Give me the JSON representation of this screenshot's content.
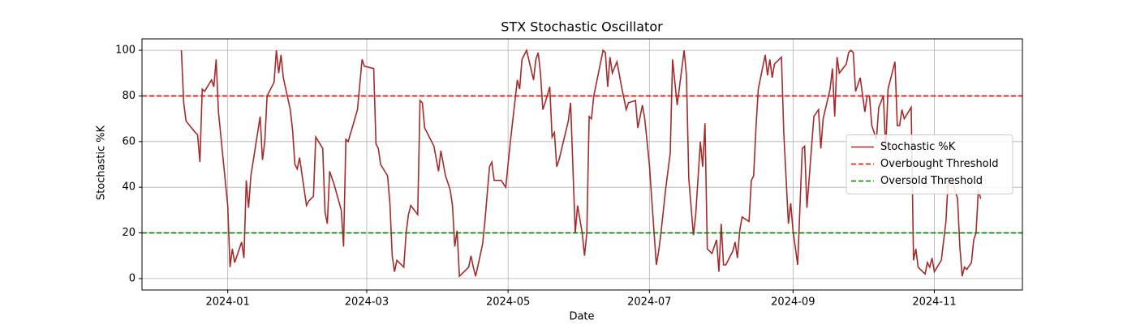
{
  "chart_data": {
    "type": "line",
    "title": "STX Stochastic Oscillator",
    "xlabel": "Date",
    "ylabel": "Stochastic %K",
    "x": [
      "2023-12-12",
      "2023-12-13",
      "2023-12-14",
      "2023-12-18",
      "2023-12-19",
      "2023-12-20",
      "2023-12-21",
      "2023-12-22",
      "2023-12-25",
      "2023-12-26",
      "2023-12-27",
      "2023-12-28",
      "2024-01-01",
      "2024-01-02",
      "2024-01-03",
      "2024-01-04",
      "2024-01-07",
      "2024-01-08",
      "2024-01-09",
      "2024-01-10",
      "2024-01-11",
      "2024-01-15",
      "2024-01-16",
      "2024-01-17",
      "2024-01-18",
      "2024-01-21",
      "2024-01-22",
      "2024-01-23",
      "2024-01-24",
      "2024-01-25",
      "2024-01-28",
      "2024-01-29",
      "2024-01-30",
      "2024-01-31",
      "2024-02-01",
      "2024-02-04",
      "2024-02-05",
      "2024-02-07",
      "2024-02-08",
      "2024-02-11",
      "2024-02-12",
      "2024-02-13",
      "2024-02-14",
      "2024-02-16",
      "2024-02-19",
      "2024-02-20",
      "2024-02-21",
      "2024-02-22",
      "2024-02-26",
      "2024-02-28",
      "2024-02-29",
      "2024-03-04",
      "2024-03-05",
      "2024-03-06",
      "2024-03-07",
      "2024-03-10",
      "2024-03-11",
      "2024-03-12",
      "2024-03-13",
      "2024-03-14",
      "2024-03-17",
      "2024-03-18",
      "2024-03-19",
      "2024-03-20",
      "2024-03-23",
      "2024-03-24",
      "2024-03-25",
      "2024-03-26",
      "2024-03-30",
      "2024-04-01",
      "2024-04-02",
      "2024-04-04",
      "2024-04-06",
      "2024-04-07",
      "2024-04-08",
      "2024-04-09",
      "2024-04-10",
      "2024-04-14",
      "2024-04-15",
      "2024-04-16",
      "2024-04-17",
      "2024-04-20",
      "2024-04-21",
      "2024-04-23",
      "2024-04-24",
      "2024-04-25",
      "2024-04-28",
      "2024-04-30",
      "2024-05-02",
      "2024-05-05",
      "2024-05-06",
      "2024-05-07",
      "2024-05-09",
      "2024-05-12",
      "2024-05-13",
      "2024-05-14",
      "2024-05-15",
      "2024-05-16",
      "2024-05-17",
      "2024-05-19",
      "2024-05-20",
      "2024-05-21",
      "2024-05-22",
      "2024-05-23",
      "2024-05-27",
      "2024-05-28",
      "2024-05-30",
      "2024-05-31",
      "2024-06-02",
      "2024-06-03",
      "2024-06-04",
      "2024-06-05",
      "2024-06-06",
      "2024-06-07",
      "2024-06-11",
      "2024-06-12",
      "2024-06-13",
      "2024-06-14",
      "2024-06-15",
      "2024-06-17",
      "2024-06-19",
      "2024-06-21",
      "2024-06-22",
      "2024-06-25",
      "2024-06-26",
      "2024-06-28",
      "2024-06-29",
      "2024-07-01",
      "2024-07-02",
      "2024-07-04",
      "2024-07-05",
      "2024-07-06",
      "2024-07-08",
      "2024-07-10",
      "2024-07-11",
      "2024-07-13",
      "2024-07-14",
      "2024-07-16",
      "2024-07-17",
      "2024-07-18",
      "2024-07-20",
      "2024-07-21",
      "2024-07-23",
      "2024-07-24",
      "2024-07-25",
      "2024-07-26",
      "2024-07-28",
      "2024-07-30",
      "2024-07-31",
      "2024-08-01",
      "2024-08-02",
      "2024-08-03",
      "2024-08-06",
      "2024-08-07",
      "2024-08-08",
      "2024-08-09",
      "2024-08-10",
      "2024-08-13",
      "2024-08-14",
      "2024-08-15",
      "2024-08-16",
      "2024-08-17",
      "2024-08-20",
      "2024-08-21",
      "2024-08-22",
      "2024-08-23",
      "2024-08-24",
      "2024-08-27",
      "2024-08-28",
      "2024-08-30",
      "2024-08-31",
      "2024-09-01",
      "2024-09-03",
      "2024-09-05",
      "2024-09-06",
      "2024-09-07",
      "2024-09-10",
      "2024-09-12",
      "2024-09-13",
      "2024-09-14",
      "2024-09-17",
      "2024-09-18",
      "2024-09-19",
      "2024-09-20",
      "2024-09-21",
      "2024-09-24",
      "2024-09-25",
      "2024-09-26",
      "2024-09-27",
      "2024-09-28",
      "2024-09-30",
      "2024-10-02",
      "2024-10-03",
      "2024-10-04",
      "2024-10-05",
      "2024-10-07",
      "2024-10-08",
      "2024-10-10",
      "2024-10-11",
      "2024-10-12",
      "2024-10-15",
      "2024-10-16",
      "2024-10-17",
      "2024-10-18",
      "2024-10-19",
      "2024-10-22",
      "2024-10-23",
      "2024-10-24",
      "2024-10-25",
      "2024-10-28",
      "2024-10-29",
      "2024-10-30",
      "2024-10-31",
      "2024-11-01",
      "2024-11-04",
      "2024-11-06",
      "2024-11-07",
      "2024-11-09",
      "2024-11-11",
      "2024-11-12",
      "2024-11-13",
      "2024-11-14",
      "2024-11-15",
      "2024-11-17",
      "2024-11-18",
      "2024-11-19",
      "2024-11-20",
      "2024-11-21"
    ],
    "series": [
      {
        "name": "Stochastic %K",
        "color": "#a52a2a",
        "values": [
          100,
          77,
          69,
          64,
          63,
          51,
          83,
          82,
          87,
          84,
          96,
          73,
          32,
          5,
          13,
          7,
          16,
          9,
          43,
          31,
          45,
          71,
          52,
          60,
          80,
          86,
          100,
          90,
          98,
          88,
          74,
          65,
          50,
          48,
          53,
          32,
          34,
          36,
          62,
          57,
          29,
          24,
          47,
          41,
          30,
          14,
          61,
          60,
          74,
          96,
          93,
          92,
          59,
          57,
          50,
          45,
          33,
          10,
          3,
          8,
          5,
          20,
          28,
          32,
          28,
          78,
          77,
          66,
          58,
          47,
          56,
          45,
          39,
          32,
          14,
          21,
          1,
          5,
          10,
          5,
          1,
          15,
          25,
          49,
          51,
          43,
          43,
          40,
          60,
          87,
          83,
          96,
          100,
          87,
          96,
          99,
          90,
          74,
          77,
          84,
          62,
          64,
          49,
          52,
          69,
          77,
          20,
          32,
          20,
          10,
          20,
          71,
          70,
          80,
          100,
          99,
          84,
          97,
          90,
          95,
          84,
          74,
          77,
          78,
          66,
          76,
          70,
          50,
          35,
          6,
          12,
          20,
          39,
          55,
          96,
          76,
          84,
          100,
          89,
          44,
          19,
          28,
          60,
          49,
          68,
          13,
          11,
          17,
          3,
          24,
          6,
          6,
          12,
          16,
          9,
          21,
          27,
          25,
          43,
          45,
          66,
          83,
          98,
          89,
          96,
          88,
          94,
          97,
          64,
          24,
          33,
          21,
          6,
          57,
          58,
          31,
          71,
          74,
          57,
          70,
          83,
          92,
          71,
          97,
          90,
          94,
          99,
          100,
          99,
          82,
          88,
          73,
          80,
          80,
          67,
          61,
          75,
          80,
          56,
          83,
          95,
          67,
          67,
          74,
          70,
          75,
          8,
          13,
          5,
          2,
          7,
          5,
          9,
          3,
          8,
          25,
          44,
          42,
          35,
          14,
          1,
          5,
          4,
          7,
          17,
          20,
          39,
          35
        ]
      }
    ],
    "hlines": [
      {
        "name": "Overbought Threshold",
        "value": 80,
        "color": "#ff0000",
        "style": "dashed"
      },
      {
        "name": "Oversold Threshold",
        "value": 20,
        "color": "#008000",
        "style": "dashed"
      }
    ],
    "xlim": [
      "2023-11-25",
      "2024-12-09"
    ],
    "ylim": [
      -5,
      105
    ],
    "xticks": [
      {
        "value": "2024-01-01",
        "label": "2024-01"
      },
      {
        "value": "2024-03-01",
        "label": "2024-03"
      },
      {
        "value": "2024-05-01",
        "label": "2024-05"
      },
      {
        "value": "2024-07-01",
        "label": "2024-07"
      },
      {
        "value": "2024-09-01",
        "label": "2024-09"
      },
      {
        "value": "2024-11-01",
        "label": "2024-11"
      }
    ],
    "yticks": [
      0,
      20,
      40,
      60,
      80,
      100
    ],
    "grid": true,
    "legend": "center right"
  }
}
